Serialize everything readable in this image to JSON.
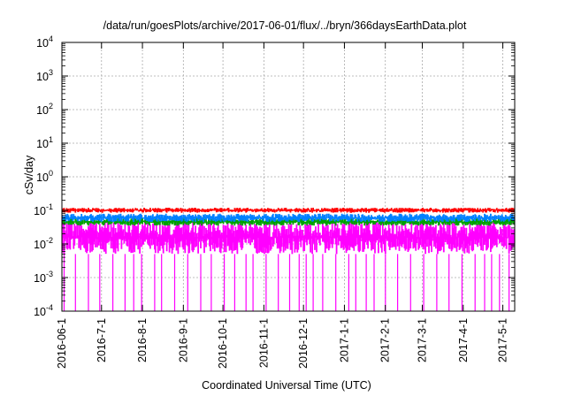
{
  "chart_data": {
    "type": "line",
    "title": "/data/run/goesPlots/archive/2017-06-01/flux/../bryn/366daysEarthData.plot",
    "xlabel": "Coordinated Universal Time (UTC)",
    "ylabel": "cSv/day",
    "x_range": [
      "2016-06-01",
      "2017-05-10"
    ],
    "y_scale": "log",
    "ylim": [
      0.0001,
      10000
    ],
    "grid": true,
    "x_ticks": [
      "2016-06-1",
      "2016-7-1",
      "2016-8-1",
      "2016-9-1",
      "2016-10-1",
      "2016-11-1",
      "2016-12-1",
      "2017-1-1",
      "2017-2-1",
      "2017-3-1",
      "2017-4-1",
      "2017-5-1"
    ],
    "y_ticks": [
      {
        "base": "10",
        "exp": "-4"
      },
      {
        "base": "10",
        "exp": "-3"
      },
      {
        "base": "10",
        "exp": "-2"
      },
      {
        "base": "10",
        "exp": "-1"
      },
      {
        "base": "10",
        "exp": "0"
      },
      {
        "base": "10",
        "exp": "1"
      },
      {
        "base": "10",
        "exp": "2"
      },
      {
        "base": "10",
        "exp": "3"
      },
      {
        "base": "10",
        "exp": "4"
      }
    ],
    "series": [
      {
        "color": "#ff00ff",
        "band": [
          0.005,
          0.05
        ],
        "spike_min": 0.0001
      },
      {
        "color": "#00a000",
        "band": [
          0.035,
          0.06
        ]
      },
      {
        "color": "#0080ff",
        "band": [
          0.045,
          0.08
        ]
      },
      {
        "color": "#ff0000",
        "band": [
          0.085,
          0.12
        ]
      }
    ]
  }
}
